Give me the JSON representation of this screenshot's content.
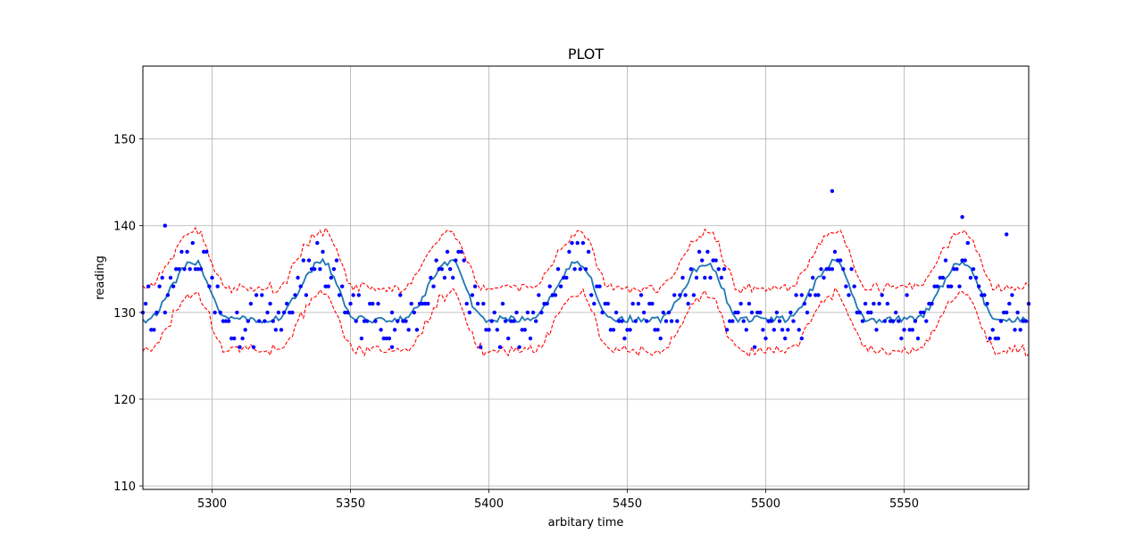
{
  "chart_data": {
    "type": "scatter",
    "title": "PLOT",
    "xlabel": "arbitary time",
    "ylabel": "reading",
    "xlim": [
      5275,
      5595
    ],
    "ylim": [
      109.6,
      158.4
    ],
    "x_ticks": [
      5300,
      5350,
      5400,
      5450,
      5500,
      5550
    ],
    "y_ticks": [
      110,
      120,
      130,
      140,
      150
    ],
    "grid": true,
    "colors": {
      "points": "#0000ff",
      "smooth": "#1f77b4",
      "band": "#ff0000",
      "grid": "#b0b0b0"
    },
    "period": 46.3,
    "phase_start": 5276,
    "point_step": 1,
    "baseline": 129.2,
    "amplitude": 6.6,
    "band_half_width": 3.3,
    "outliers": [
      {
        "x": 5283,
        "y": 140
      },
      {
        "x": 5524,
        "y": 144
      },
      {
        "x": 5571,
        "y": 141
      },
      {
        "x": 5587,
        "y": 139
      },
      {
        "x": 5365,
        "y": 126
      },
      {
        "x": 5513,
        "y": 127
      }
    ]
  }
}
